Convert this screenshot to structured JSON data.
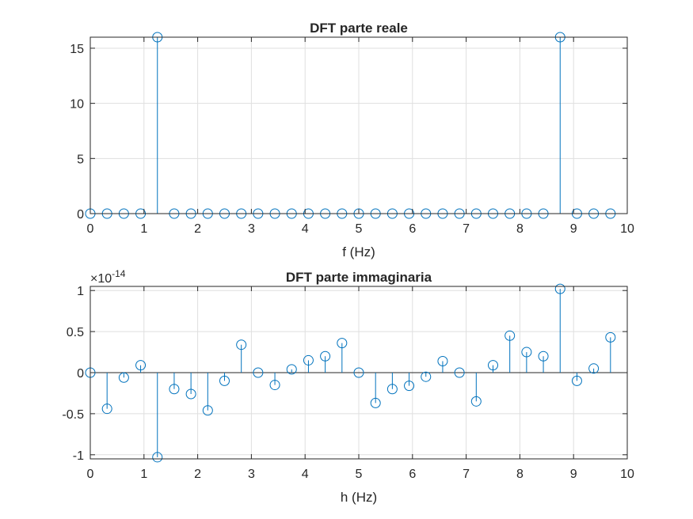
{
  "chart_data": [
    {
      "type": "stem",
      "title": "DFT parte reale",
      "xlabel": "f (Hz)",
      "ylabel": "",
      "xlim": [
        0,
        10
      ],
      "ylim": [
        0,
        16
      ],
      "xticks": [
        0,
        1,
        2,
        3,
        4,
        5,
        6,
        7,
        8,
        9,
        10
      ],
      "yticks": [
        0,
        5,
        10,
        15
      ],
      "xticklabels": [
        "0",
        "1",
        "2",
        "3",
        "4",
        "5",
        "6",
        "7",
        "8",
        "9",
        "10"
      ],
      "yticklabels": [
        "0",
        "5",
        "10",
        "15"
      ],
      "grid": true,
      "exponent_label": "",
      "x": [
        0,
        0.3125,
        0.625,
        0.9375,
        1.25,
        1.5625,
        1.875,
        2.1875,
        2.5,
        2.8125,
        3.125,
        3.4375,
        3.75,
        4.0625,
        4.375,
        4.6875,
        5,
        5.3125,
        5.625,
        5.9375,
        6.25,
        6.5625,
        6.875,
        7.1875,
        7.5,
        7.8125,
        8.125,
        8.4375,
        8.75,
        9.0625,
        9.375,
        9.6875
      ],
      "values": [
        0,
        0,
        0,
        0,
        16,
        0,
        0,
        0,
        0,
        0,
        0,
        0,
        0,
        0,
        0,
        0,
        0,
        0,
        0,
        0,
        0,
        0,
        0,
        0,
        0,
        0,
        0,
        0,
        16,
        0,
        0,
        0
      ]
    },
    {
      "type": "stem",
      "title": "DFT parte immaginaria",
      "xlabel": "h (Hz)",
      "ylabel": "",
      "xlim": [
        0,
        10
      ],
      "ylim": [
        -1.05,
        1.05
      ],
      "xticks": [
        0,
        1,
        2,
        3,
        4,
        5,
        6,
        7,
        8,
        9,
        10
      ],
      "yticks": [
        -1,
        -0.5,
        0,
        0.5,
        1
      ],
      "xticklabels": [
        "0",
        "1",
        "2",
        "3",
        "4",
        "5",
        "6",
        "7",
        "8",
        "9",
        "10"
      ],
      "yticklabels": [
        "-1",
        "-0.5",
        "0",
        "0.5",
        "1"
      ],
      "grid": true,
      "exponent_label": {
        "base": "×10",
        "power": "-14"
      },
      "x": [
        0,
        0.3125,
        0.625,
        0.9375,
        1.25,
        1.5625,
        1.875,
        2.1875,
        2.5,
        2.8125,
        3.125,
        3.4375,
        3.75,
        4.0625,
        4.375,
        4.6875,
        5,
        5.3125,
        5.625,
        5.9375,
        6.25,
        6.5625,
        6.875,
        7.1875,
        7.5,
        7.8125,
        8.125,
        8.4375,
        8.75,
        9.0625,
        9.375,
        9.6875
      ],
      "values": [
        0,
        -0.44,
        -0.06,
        0.09,
        -1.03,
        -0.2,
        -0.26,
        -0.46,
        -0.1,
        0.34,
        0,
        -0.15,
        0.04,
        0.15,
        0.2,
        0.36,
        0,
        -0.37,
        -0.2,
        -0.16,
        -0.05,
        0.14,
        0,
        -0.35,
        0.09,
        0.45,
        0.25,
        0.2,
        1.02,
        -0.1,
        0.05,
        0.43
      ]
    }
  ],
  "colors": {
    "series": "#0072bd",
    "grid": "#dfdfdf",
    "axis": "#262626"
  }
}
